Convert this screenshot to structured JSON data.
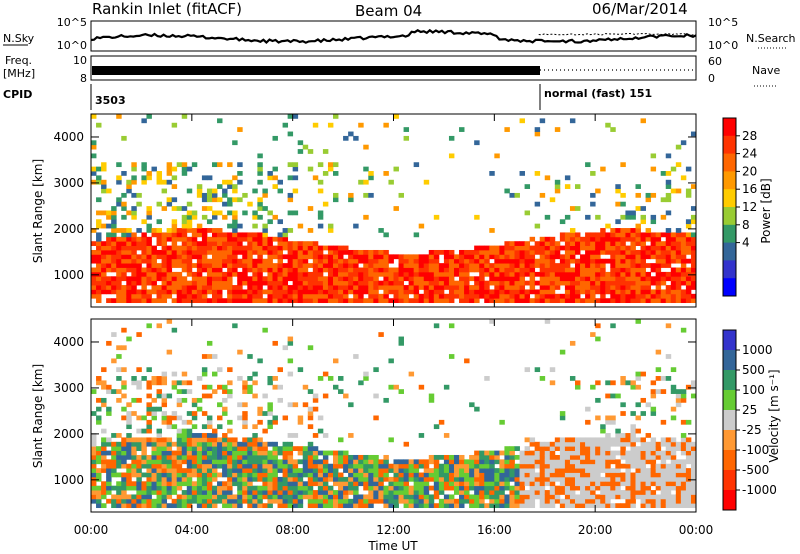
{
  "header": {
    "station": "Rankin Inlet (fitACF)",
    "beam": "Beam 04",
    "date": "06/Mar/2014"
  },
  "strip": {
    "nsky_label": "N.Sky",
    "nsearch_label": "N.Search",
    "noise_ticks_left": [
      "10^5",
      "10^0"
    ],
    "noise_ticks_right": [
      "10^5",
      "10^0"
    ],
    "freq_label_line1": "Freq.",
    "freq_label_line2": "[MHz]",
    "freq_ticks": [
      "10",
      "8"
    ],
    "nave_label": "Nave",
    "nave_ticks": [
      "60",
      "0"
    ],
    "cpid_label": "CPID",
    "cpid_first": "3503",
    "cpid_second": "normal (fast) 151"
  },
  "chart_data": [
    {
      "type": "heatmap",
      "name": "power",
      "ylabel": "Slant Range [km]",
      "xlabel": "Time UT",
      "ylim": [
        300,
        4500
      ],
      "yticks": [
        "1000",
        "2000",
        "3000",
        "4000"
      ],
      "xticks": [
        "00:00",
        "04:00",
        "08:00",
        "12:00",
        "16:00",
        "20:00",
        "00:00"
      ],
      "colorbar": {
        "label": "Power [dB]",
        "ticks": [
          "28",
          "24",
          "20",
          "16",
          "12",
          "8",
          "4"
        ],
        "colors": [
          "#ff0000",
          "#ff3300",
          "#ff6600",
          "#ff9900",
          "#ffcc00",
          "#99cc33",
          "#339966",
          "#336699",
          "#3333cc",
          "#0000ff"
        ]
      }
    },
    {
      "type": "heatmap",
      "name": "velocity",
      "ylabel": "Slant Range [km]",
      "xlabel": "Time UT",
      "ylim": [
        300,
        4500
      ],
      "yticks": [
        "1000",
        "2000",
        "3000",
        "4000"
      ],
      "xticks": [
        "00:00",
        "04:00",
        "08:00",
        "12:00",
        "16:00",
        "20:00",
        "00:00"
      ],
      "colorbar": {
        "label": "Velocity [m s⁻¹]",
        "ticks": [
          "1000",
          "500",
          "100",
          "25",
          "-25",
          "-100",
          "-500",
          "-1000"
        ],
        "colors": [
          "#3333cc",
          "#336699",
          "#339966",
          "#66cc33",
          "#cccccc",
          "#ff9933",
          "#ff6600",
          "#ff3300",
          "#ff0000"
        ]
      }
    }
  ],
  "footer": {
    "time_label": "Time UT"
  }
}
